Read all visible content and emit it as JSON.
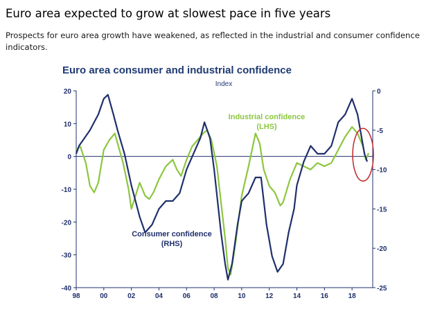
{
  "slide": {
    "title": "Euro area expected to grow at slowest pace in five years",
    "subtitle": "Prospects for euro area growth have weakened, as reflected in the industrial and consumer confidence indicators."
  },
  "chart_data": {
    "type": "line",
    "title": "Euro area consumer and industrial confidence",
    "units_label": "Index",
    "x_ticks": [
      "98",
      "00",
      "02",
      "04",
      "06",
      "08",
      "10",
      "12",
      "14",
      "16",
      "18"
    ],
    "xlim": [
      1998,
      2019.5
    ],
    "y_left": {
      "ticks": [
        "20",
        "10",
        "0",
        "-10",
        "-20",
        "-30",
        "-40"
      ],
      "ylim": [
        -40,
        20
      ]
    },
    "y_right": {
      "ticks": [
        "0",
        "-5",
        "-10",
        "-15",
        "-20",
        "-25"
      ],
      "ylim": [
        -25,
        0
      ]
    },
    "zero_line": true,
    "highlight_circle_year": 2018.8,
    "colors": {
      "industrial": "#8cc63f",
      "consumer": "#1f2f6b",
      "axis": "#1f2f6b",
      "circle": "#c0272d"
    },
    "series": [
      {
        "name": "Industrial confidence",
        "label_lines": [
          "Industrial confidence",
          "(LHS)"
        ],
        "axis": "left",
        "points": [
          [
            1998.0,
            2
          ],
          [
            1998.3,
            3
          ],
          [
            1998.7,
            -2
          ],
          [
            1999.0,
            -9
          ],
          [
            1999.3,
            -11
          ],
          [
            1999.6,
            -8
          ],
          [
            2000.0,
            2
          ],
          [
            2000.4,
            5
          ],
          [
            2000.8,
            7
          ],
          [
            2001.0,
            4
          ],
          [
            2001.4,
            -2
          ],
          [
            2001.8,
            -10
          ],
          [
            2002.0,
            -16
          ],
          [
            2002.3,
            -12
          ],
          [
            2002.6,
            -8
          ],
          [
            2003.0,
            -12
          ],
          [
            2003.3,
            -13
          ],
          [
            2003.6,
            -11
          ],
          [
            2004.0,
            -7
          ],
          [
            2004.5,
            -3
          ],
          [
            2005.0,
            -1
          ],
          [
            2005.3,
            -4
          ],
          [
            2005.6,
            -6
          ],
          [
            2006.0,
            -1
          ],
          [
            2006.4,
            3
          ],
          [
            2006.8,
            5
          ],
          [
            2007.2,
            7
          ],
          [
            2007.5,
            8
          ],
          [
            2007.8,
            5
          ],
          [
            2008.2,
            -3
          ],
          [
            2008.5,
            -14
          ],
          [
            2008.8,
            -25
          ],
          [
            2009.0,
            -34
          ],
          [
            2009.2,
            -36
          ],
          [
            2009.5,
            -28
          ],
          [
            2010.0,
            -12
          ],
          [
            2010.5,
            -3
          ],
          [
            2010.8,
            3
          ],
          [
            2011.0,
            7
          ],
          [
            2011.3,
            4
          ],
          [
            2011.6,
            -4
          ],
          [
            2012.0,
            -9
          ],
          [
            2012.4,
            -11
          ],
          [
            2012.8,
            -15
          ],
          [
            2013.0,
            -14
          ],
          [
            2013.5,
            -7
          ],
          [
            2014.0,
            -2
          ],
          [
            2014.5,
            -3
          ],
          [
            2015.0,
            -4
          ],
          [
            2015.5,
            -2
          ],
          [
            2016.0,
            -3
          ],
          [
            2016.5,
            -2
          ],
          [
            2017.0,
            2
          ],
          [
            2017.5,
            6
          ],
          [
            2018.0,
            9
          ],
          [
            2018.4,
            7
          ],
          [
            2018.8,
            3
          ],
          [
            2019.0,
            -1
          ],
          [
            2019.2,
            1
          ]
        ]
      },
      {
        "name": "Consumer confidence",
        "label_lines": [
          "Consumer confidence",
          "(RHS)"
        ],
        "axis": "right",
        "points": [
          [
            1998.0,
            -8
          ],
          [
            1998.2,
            -7
          ],
          [
            1998.6,
            -6
          ],
          [
            1999.0,
            -5
          ],
          [
            1999.3,
            -4
          ],
          [
            1999.6,
            -3
          ],
          [
            2000.0,
            -1
          ],
          [
            2000.3,
            -0.5
          ],
          [
            2000.7,
            -3
          ],
          [
            2001.0,
            -5
          ],
          [
            2001.5,
            -8
          ],
          [
            2002.0,
            -12
          ],
          [
            2002.3,
            -14
          ],
          [
            2002.6,
            -16
          ],
          [
            2003.0,
            -18
          ],
          [
            2003.5,
            -17
          ],
          [
            2004.0,
            -15
          ],
          [
            2004.5,
            -14
          ],
          [
            2005.0,
            -14
          ],
          [
            2005.5,
            -13
          ],
          [
            2006.0,
            -10
          ],
          [
            2006.5,
            -8
          ],
          [
            2007.0,
            -6
          ],
          [
            2007.3,
            -4
          ],
          [
            2007.7,
            -6
          ],
          [
            2008.0,
            -10
          ],
          [
            2008.5,
            -18
          ],
          [
            2008.8,
            -22
          ],
          [
            2009.0,
            -24
          ],
          [
            2009.3,
            -22
          ],
          [
            2009.7,
            -17
          ],
          [
            2010.0,
            -14
          ],
          [
            2010.5,
            -13
          ],
          [
            2011.0,
            -11
          ],
          [
            2011.4,
            -11
          ],
          [
            2011.8,
            -17
          ],
          [
            2012.2,
            -21
          ],
          [
            2012.6,
            -23
          ],
          [
            2013.0,
            -22
          ],
          [
            2013.4,
            -18
          ],
          [
            2013.8,
            -15
          ],
          [
            2014.0,
            -12
          ],
          [
            2014.5,
            -9
          ],
          [
            2015.0,
            -7
          ],
          [
            2015.5,
            -8
          ],
          [
            2016.0,
            -8
          ],
          [
            2016.5,
            -7
          ],
          [
            2017.0,
            -4
          ],
          [
            2017.5,
            -3
          ],
          [
            2018.0,
            -1
          ],
          [
            2018.4,
            -3
          ],
          [
            2018.7,
            -6
          ],
          [
            2018.9,
            -8
          ],
          [
            2019.1,
            -9
          ]
        ]
      }
    ]
  }
}
